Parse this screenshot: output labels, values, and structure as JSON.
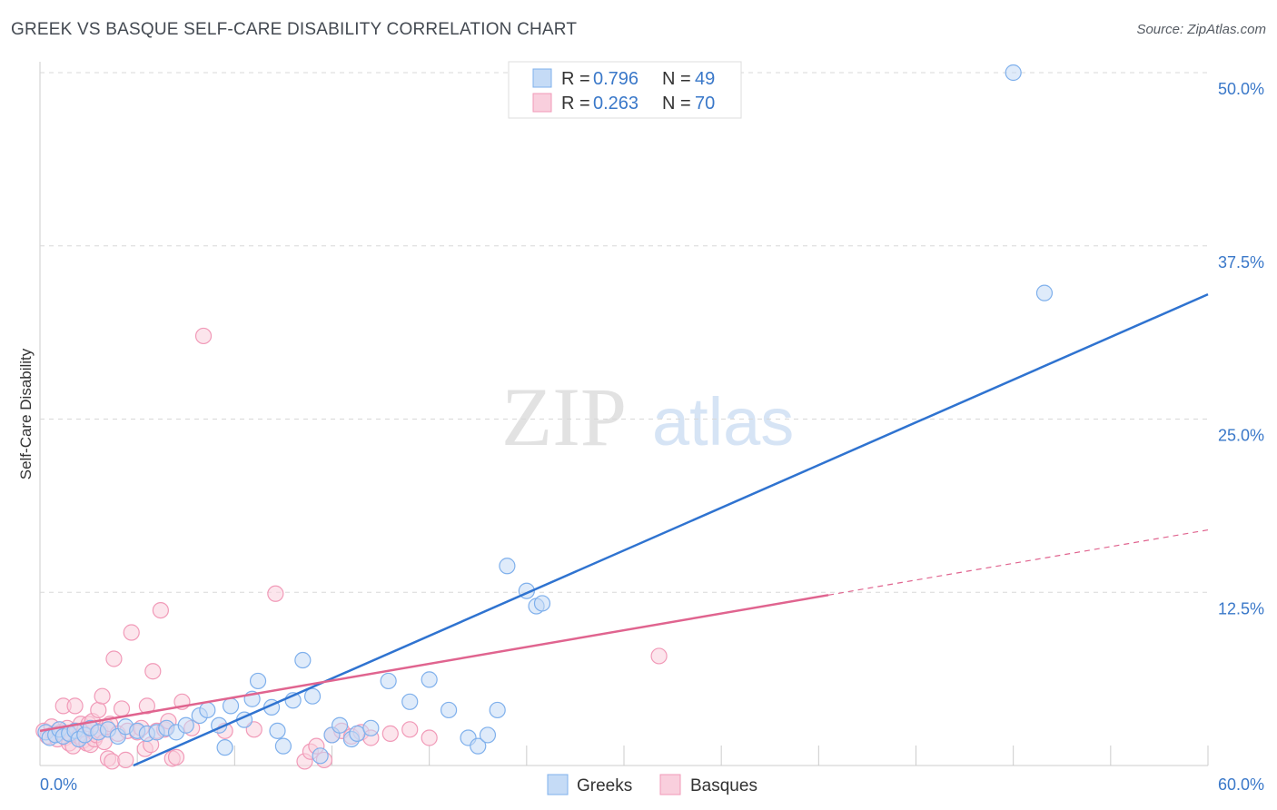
{
  "title": "GREEK VS BASQUE SELF-CARE DISABILITY CORRELATION CHART",
  "source": "Source: ZipAtlas.com",
  "watermark": {
    "zip": "ZIP",
    "atlas": "atlas"
  },
  "colors": {
    "greeks": "#7fb0ec",
    "greeks_fill": "#c5dbf6",
    "greeks_line": "#2f73d0",
    "basques": "#f19ab8",
    "basques_fill": "#f9cfdd",
    "basques_line": "#e0648f",
    "tick": "#3a78c9",
    "grid": "#d8d8d8"
  },
  "legend": {
    "rows": [
      {
        "r_label": "R = ",
        "r_value": "0.796",
        "n_label": "N = ",
        "n_value": "49"
      },
      {
        "r_label": "R = ",
        "r_value": "0.263",
        "n_label": "N = ",
        "n_value": "70"
      }
    ]
  },
  "chart_data": {
    "type": "scatter",
    "title": "GREEK VS BASQUE SELF-CARE DISABILITY CORRELATION CHART",
    "ylabel": "Self-Care Disability",
    "xlim": [
      0,
      60
    ],
    "ylim": [
      0,
      50
    ],
    "x_tick_labels": [
      "0.0%",
      "60.0%"
    ],
    "y_ticks": [
      12.5,
      25.0,
      37.5,
      50.0
    ],
    "y_tick_labels": [
      "12.5%",
      "25.0%",
      "37.5%",
      "50.0%"
    ],
    "grid": true,
    "legend_position": "top-center",
    "series": [
      {
        "name": "Greeks",
        "r": 0.796,
        "n": 49,
        "trend": {
          "x": [
            4.8,
            60
          ],
          "y": [
            0.0,
            34.0
          ]
        },
        "points": [
          [
            0.3,
            2.4
          ],
          [
            0.5,
            2.0
          ],
          [
            0.8,
            2.2
          ],
          [
            1.0,
            2.6
          ],
          [
            1.2,
            2.1
          ],
          [
            1.5,
            2.3
          ],
          [
            1.8,
            2.5
          ],
          [
            2.0,
            1.9
          ],
          [
            2.3,
            2.2
          ],
          [
            2.6,
            2.7
          ],
          [
            3.0,
            2.4
          ],
          [
            3.5,
            2.6
          ],
          [
            4.0,
            2.1
          ],
          [
            4.4,
            2.8
          ],
          [
            5.0,
            2.5
          ],
          [
            5.5,
            2.3
          ],
          [
            6.0,
            2.4
          ],
          [
            6.5,
            2.7
          ],
          [
            7.0,
            2.4
          ],
          [
            7.5,
            2.9
          ],
          [
            8.2,
            3.6
          ],
          [
            8.6,
            4.0
          ],
          [
            9.2,
            2.9
          ],
          [
            9.5,
            1.3
          ],
          [
            9.8,
            4.3
          ],
          [
            10.5,
            3.3
          ],
          [
            10.9,
            4.8
          ],
          [
            11.2,
            6.1
          ],
          [
            11.9,
            4.2
          ],
          [
            12.2,
            2.5
          ],
          [
            12.5,
            1.4
          ],
          [
            13.0,
            4.7
          ],
          [
            13.5,
            7.6
          ],
          [
            14.0,
            5.0
          ],
          [
            14.4,
            0.7
          ],
          [
            15.0,
            2.2
          ],
          [
            15.4,
            2.9
          ],
          [
            16.0,
            1.9
          ],
          [
            16.3,
            2.3
          ],
          [
            17.0,
            2.7
          ],
          [
            17.9,
            6.1
          ],
          [
            19.0,
            4.6
          ],
          [
            20.0,
            6.2
          ],
          [
            21.0,
            4.0
          ],
          [
            22.0,
            2.0
          ],
          [
            22.5,
            1.4
          ],
          [
            23.0,
            2.2
          ],
          [
            23.5,
            4.0
          ],
          [
            24.0,
            14.4
          ]
        ],
        "extra_points": [
          [
            25.0,
            12.6
          ],
          [
            25.5,
            11.5
          ],
          [
            25.8,
            11.7
          ],
          [
            50.0,
            50.0
          ],
          [
            51.6,
            34.1
          ]
        ]
      },
      {
        "name": "Basques",
        "r": 0.263,
        "n": 70,
        "trend": {
          "x": [
            0,
            40.5
          ],
          "y": [
            2.5,
            12.3
          ]
        },
        "trend_dashed": {
          "x": [
            40.5,
            60
          ],
          "y": [
            12.3,
            17.0
          ]
        },
        "points": [
          [
            0.2,
            2.5
          ],
          [
            0.4,
            2.1
          ],
          [
            0.6,
            2.8
          ],
          [
            0.7,
            2.3
          ],
          [
            0.9,
            1.9
          ],
          [
            1.0,
            2.6
          ],
          [
            1.1,
            2.4
          ],
          [
            1.2,
            4.3
          ],
          [
            1.3,
            2.0
          ],
          [
            1.4,
            2.7
          ],
          [
            1.5,
            1.6
          ],
          [
            1.6,
            2.2
          ],
          [
            1.7,
            1.4
          ],
          [
            1.8,
            4.3
          ],
          [
            1.9,
            2.5
          ],
          [
            2.0,
            2.1
          ],
          [
            2.1,
            3.0
          ],
          [
            2.2,
            1.8
          ],
          [
            2.3,
            2.6
          ],
          [
            2.4,
            1.6
          ],
          [
            2.5,
            3.0
          ],
          [
            2.6,
            1.5
          ],
          [
            2.7,
            3.2
          ],
          [
            2.8,
            1.9
          ],
          [
            2.9,
            2.2
          ],
          [
            3.0,
            4.0
          ],
          [
            3.1,
            2.5
          ],
          [
            3.2,
            5.0
          ],
          [
            3.3,
            1.7
          ],
          [
            3.4,
            2.8
          ],
          [
            3.5,
            0.5
          ],
          [
            3.6,
            3.0
          ],
          [
            3.7,
            0.3
          ],
          [
            3.8,
            7.7
          ],
          [
            4.0,
            2.3
          ],
          [
            4.2,
            4.1
          ],
          [
            4.4,
            0.4
          ],
          [
            4.5,
            2.5
          ],
          [
            4.7,
            9.6
          ],
          [
            5.0,
            2.4
          ],
          [
            5.2,
            2.7
          ],
          [
            5.4,
            1.2
          ],
          [
            5.5,
            4.3
          ],
          [
            5.7,
            1.5
          ],
          [
            5.8,
            6.8
          ],
          [
            6.0,
            2.5
          ],
          [
            6.2,
            11.2
          ],
          [
            6.4,
            2.6
          ],
          [
            6.6,
            3.2
          ],
          [
            6.8,
            0.5
          ],
          [
            7.0,
            0.6
          ],
          [
            7.3,
            4.6
          ],
          [
            7.8,
            2.7
          ],
          [
            8.4,
            31.0
          ],
          [
            9.5,
            2.5
          ],
          [
            11.0,
            2.6
          ],
          [
            12.1,
            12.4
          ],
          [
            13.6,
            0.3
          ],
          [
            13.9,
            1.0
          ],
          [
            14.2,
            1.4
          ],
          [
            14.6,
            0.4
          ],
          [
            15.0,
            2.2
          ],
          [
            15.5,
            2.5
          ],
          [
            16.0,
            2.1
          ],
          [
            16.5,
            2.4
          ],
          [
            17.0,
            2.0
          ],
          [
            18.0,
            2.3
          ],
          [
            19.0,
            2.6
          ],
          [
            20.0,
            2.0
          ],
          [
            31.8,
            7.9
          ]
        ]
      }
    ]
  }
}
